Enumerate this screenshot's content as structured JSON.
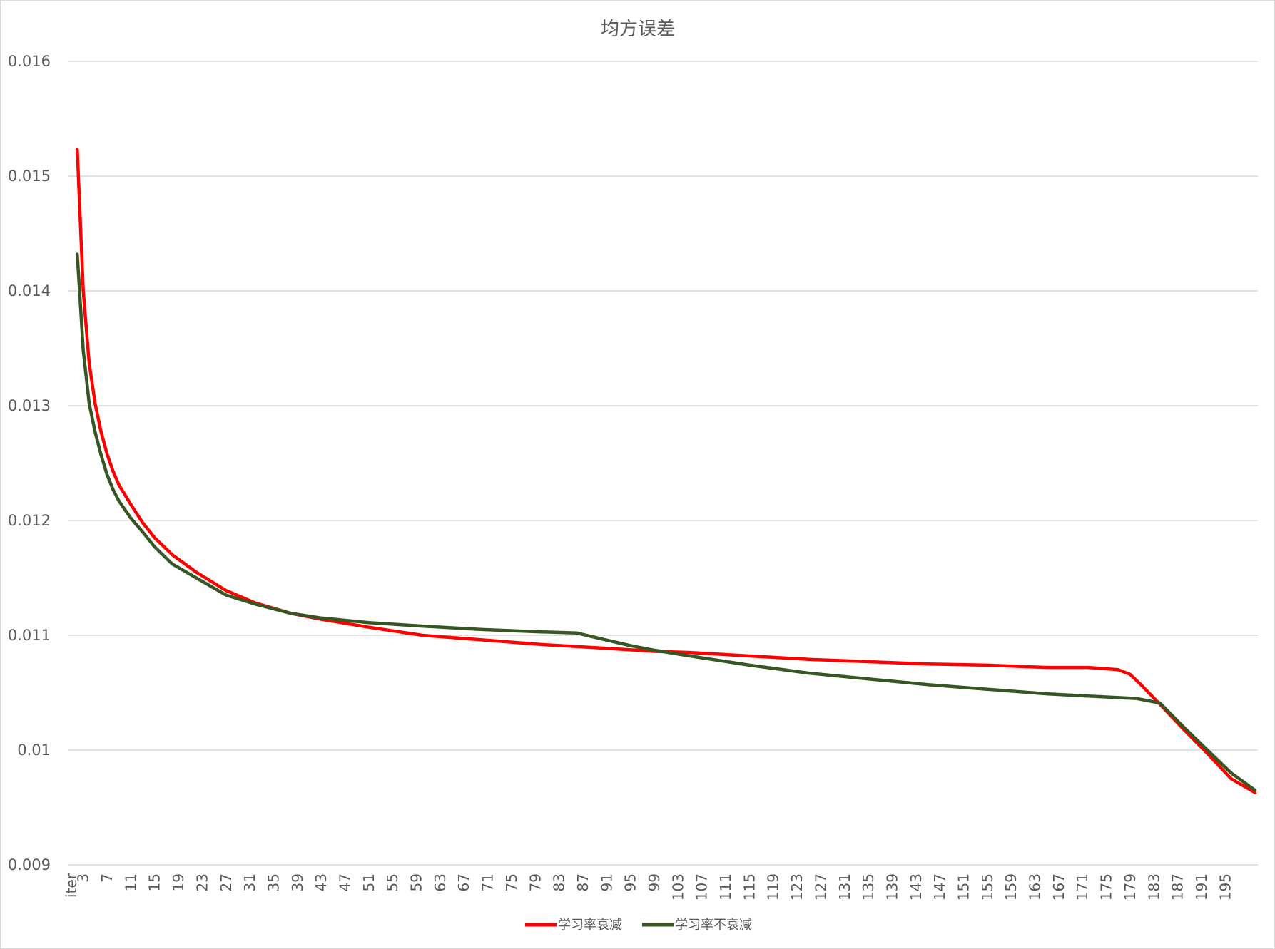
{
  "chart_data": {
    "type": "line",
    "title": "均方误差",
    "xlabel": "",
    "ylabel": "",
    "ylim": [
      0.009,
      0.016
    ],
    "yticks": [
      "0.009",
      "0.01",
      "0.011",
      "0.012",
      "0.013",
      "0.014",
      "0.015",
      "0.016"
    ],
    "first_category_label": "iter",
    "x_start": 2,
    "x_end": 200,
    "xtick_labels": [
      "iter",
      "3",
      "7",
      "11",
      "15",
      "19",
      "23",
      "27",
      "31",
      "35",
      "39",
      "43",
      "47",
      "51",
      "55",
      "59",
      "63",
      "67",
      "71",
      "75",
      "79",
      "83",
      "87",
      "91",
      "95",
      "99",
      "103",
      "107",
      "111",
      "115",
      "119",
      "123",
      "127",
      "131",
      "135",
      "139",
      "143",
      "147",
      "151",
      "155",
      "159",
      "163",
      "167",
      "171",
      "175",
      "179",
      "183",
      "187",
      "191",
      "195"
    ],
    "grid": true,
    "legend_position": "bottom",
    "series": [
      {
        "name": "学习率衰减",
        "color": "#ff0000",
        "points": [
          [
            2,
            0.01523
          ],
          [
            3,
            0.014
          ],
          [
            4,
            0.01337
          ],
          [
            5,
            0.01302
          ],
          [
            6,
            0.01277
          ],
          [
            7,
            0.01258
          ],
          [
            8,
            0.01243
          ],
          [
            9,
            0.01231
          ],
          [
            11,
            0.01214
          ],
          [
            13,
            0.01198
          ],
          [
            15,
            0.01185
          ],
          [
            18,
            0.0117
          ],
          [
            22,
            0.01155
          ],
          [
            27,
            0.01139
          ],
          [
            32,
            0.01128
          ],
          [
            38,
            0.01119
          ],
          [
            43,
            0.01114
          ],
          [
            51,
            0.01107
          ],
          [
            60,
            0.011
          ],
          [
            70,
            0.01096
          ],
          [
            80,
            0.01092
          ],
          [
            90,
            0.01089
          ],
          [
            99,
            0.01086
          ],
          [
            105,
            0.01085
          ],
          [
            115,
            0.01082
          ],
          [
            125,
            0.01079
          ],
          [
            135,
            0.01077
          ],
          [
            145,
            0.01075
          ],
          [
            155,
            0.01074
          ],
          [
            165,
            0.01072
          ],
          [
            172,
            0.01072
          ],
          [
            177,
            0.0107
          ],
          [
            179,
            0.01066
          ],
          [
            181,
            0.01056
          ],
          [
            184,
            0.0104
          ],
          [
            188,
            0.01018
          ],
          [
            192,
            0.00997
          ],
          [
            196,
            0.00975
          ],
          [
            200,
            0.00963
          ]
        ]
      },
      {
        "name": "学习率不衰减",
        "color": "#375623",
        "points": [
          [
            2,
            0.01432
          ],
          [
            3,
            0.01348
          ],
          [
            4,
            0.01302
          ],
          [
            5,
            0.01277
          ],
          [
            6,
            0.01257
          ],
          [
            7,
            0.0124
          ],
          [
            8,
            0.01227
          ],
          [
            9,
            0.01217
          ],
          [
            11,
            0.01202
          ],
          [
            13,
            0.0119
          ],
          [
            15,
            0.01177
          ],
          [
            18,
            0.01162
          ],
          [
            22,
            0.0115
          ],
          [
            27,
            0.01135
          ],
          [
            32,
            0.01127
          ],
          [
            38,
            0.01119
          ],
          [
            43,
            0.01115
          ],
          [
            51,
            0.01111
          ],
          [
            60,
            0.01108
          ],
          [
            70,
            0.01105
          ],
          [
            80,
            0.01103
          ],
          [
            86,
            0.01102
          ],
          [
            90,
            0.01097
          ],
          [
            95,
            0.01091
          ],
          [
            99,
            0.01087
          ],
          [
            105,
            0.01082
          ],
          [
            115,
            0.01074
          ],
          [
            125,
            0.01067
          ],
          [
            135,
            0.01062
          ],
          [
            145,
            0.01057
          ],
          [
            155,
            0.01053
          ],
          [
            165,
            0.01049
          ],
          [
            172,
            0.01047
          ],
          [
            180,
            0.01045
          ],
          [
            184,
            0.01041
          ],
          [
            188,
            0.0102
          ],
          [
            192,
            0.01
          ],
          [
            196,
            0.0098
          ],
          [
            200,
            0.00965
          ]
        ]
      }
    ]
  }
}
